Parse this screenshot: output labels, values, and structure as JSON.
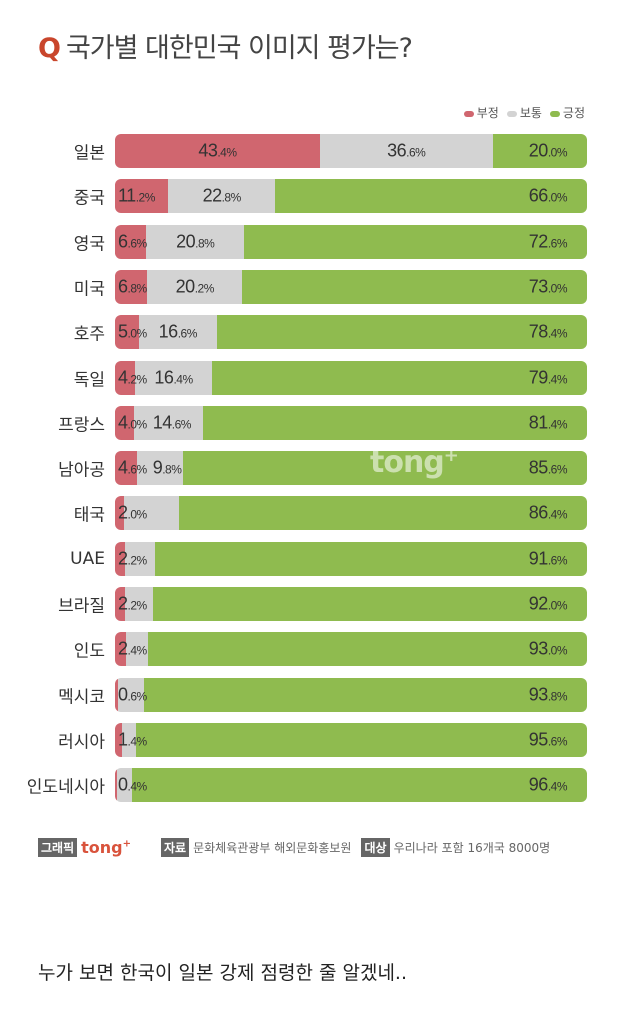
{
  "title": {
    "q": "Q",
    "text": "국가별 대한민국 이미지 평가는?"
  },
  "chart_data": {
    "type": "bar",
    "orientation": "horizontal",
    "stacked": true,
    "title": "국가별 대한민국 이미지 평가는?",
    "categories": [
      "일본",
      "중국",
      "영국",
      "미국",
      "호주",
      "독일",
      "프랑스",
      "남아공",
      "태국",
      "UAE",
      "브라질",
      "인도",
      "멕시코",
      "러시아",
      "인도네시아"
    ],
    "series": [
      {
        "name": "부정",
        "color": "#d0666f",
        "values": [
          43.4,
          11.2,
          6.6,
          6.8,
          5.0,
          4.2,
          4.0,
          4.6,
          2.0,
          2.2,
          2.2,
          2.4,
          0.6,
          1.4,
          0.4
        ],
        "labels": [
          "43.4",
          "11.2",
          "6.6",
          "6.8",
          "5.0",
          "4.2",
          "4.0",
          "4.6",
          "2.0",
          "2.2",
          "2.2",
          "2.4",
          "0.6",
          "1.4",
          "0.4"
        ]
      },
      {
        "name": "보통",
        "color": "#d3d3d3",
        "values": [
          36.6,
          22.8,
          20.8,
          20.2,
          16.6,
          16.4,
          14.6,
          9.8,
          11.6,
          6.2,
          5.8,
          4.6,
          5.6,
          3.0,
          3.2
        ],
        "labels": [
          "36.6",
          "22.8",
          "20.8",
          "20.2",
          "16.6",
          "16.4",
          "14.6",
          "9.8",
          null,
          null,
          null,
          null,
          null,
          null,
          null
        ]
      },
      {
        "name": "긍정",
        "color": "#8fbb4f",
        "values": [
          20.0,
          66.0,
          72.6,
          73.0,
          78.4,
          79.4,
          81.4,
          85.6,
          86.4,
          91.6,
          92.0,
          93.0,
          93.8,
          95.6,
          96.4
        ],
        "labels": [
          "20.0",
          "66.0",
          "72.6",
          "73.0",
          "78.4",
          "79.4",
          "81.4",
          "85.6",
          "86.4",
          "91.6",
          "92.0",
          "93.0",
          "93.8",
          "95.6",
          "96.4"
        ]
      }
    ],
    "unit": "%",
    "xlim": [
      0,
      100
    ],
    "legend": "top-right"
  },
  "watermark": "tong+",
  "footer": {
    "graphic_tag": "그래픽",
    "brand": "tong",
    "brand_plus": "+",
    "source_tag": "자료",
    "source": "문화체육관광부 해외문화홍보원",
    "target_tag": "대상",
    "target": "우리나라 포함 16개국 8000명"
  },
  "comment": "누가 보면 한국이 일본 강제 점령한 줄 알겠네.."
}
